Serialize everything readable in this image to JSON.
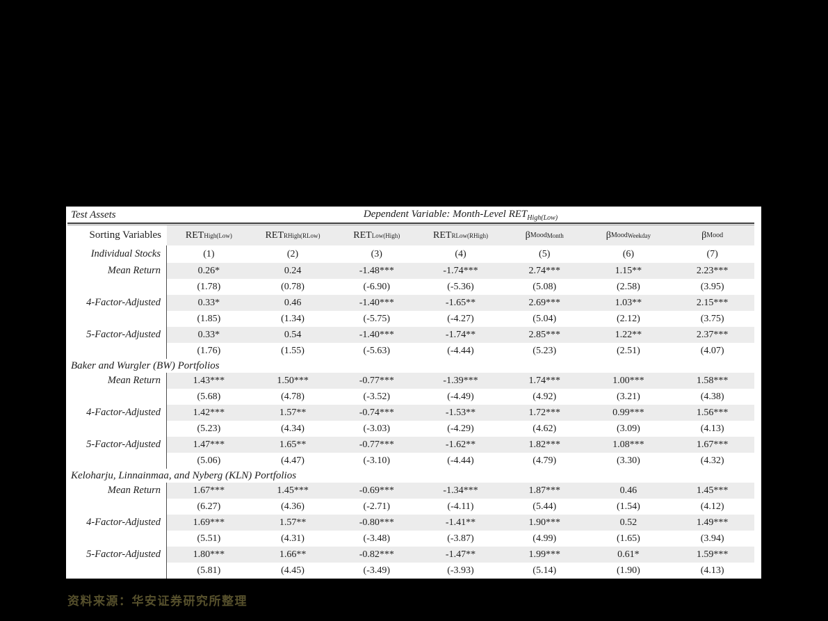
{
  "colors": {
    "page_background": "#000000",
    "panel_background": "#ffffff",
    "stripe": "#ececec",
    "footer_text": "#56502c"
  },
  "table": {
    "top_left_label": "Test Assets",
    "dependent_variable": {
      "prefix": "Dependent Variable: Month-Level ",
      "base": "RET",
      "sub": "High(Low)"
    },
    "row_label_header": "Sorting Variables",
    "columns": [
      {
        "base": "RET",
        "sup": "",
        "sub": "High(Low)"
      },
      {
        "base": "RET",
        "sup": "",
        "sub": "RHigh(RLow)"
      },
      {
        "base": "RET",
        "sup": "",
        "sub": "Low(High)"
      },
      {
        "base": "RET",
        "sup": "",
        "sub": "RLow(RHigh)"
      },
      {
        "base": "β",
        "sup": "Mood",
        "sub": "Month"
      },
      {
        "base": "β",
        "sup": "Mood",
        "sub": "Weekday"
      },
      {
        "base": "β",
        "sup": "Mood",
        "sub": ""
      }
    ],
    "sections": [
      {
        "title": "Individual Stocks",
        "title_in_label_column": true,
        "column_numbers": [
          "(1)",
          "(2)",
          "(3)",
          "(4)",
          "(5)",
          "(6)",
          "(7)"
        ],
        "rows": [
          {
            "label": "Mean Return",
            "values": [
              "0.26*",
              "0.24",
              "-1.48***",
              "-1.74***",
              "2.74***",
              "1.15**",
              "2.23***"
            ],
            "tstats": [
              "(1.78)",
              "(0.78)",
              "(-6.90)",
              "(-5.36)",
              "(5.08)",
              "(2.58)",
              "(3.95)"
            ]
          },
          {
            "label": "4-Factor-Adjusted",
            "values": [
              "0.33*",
              "0.46",
              "-1.40***",
              "-1.65**",
              "2.69***",
              "1.03**",
              "2.15***"
            ],
            "tstats": [
              "(1.85)",
              "(1.34)",
              "(-5.75)",
              "(-4.27)",
              "(5.04)",
              "(2.12)",
              "(3.75)"
            ]
          },
          {
            "label": "5-Factor-Adjusted",
            "values": [
              "0.33*",
              "0.54",
              "-1.40***",
              "-1.74**",
              "2.85***",
              "1.22**",
              "2.37***"
            ],
            "tstats": [
              "(1.76)",
              "(1.55)",
              "(-5.63)",
              "(-4.44)",
              "(5.23)",
              "(2.51)",
              "(4.07)"
            ]
          }
        ]
      },
      {
        "title": "Baker and Wurgler (BW) Portfolios",
        "title_in_label_column": false,
        "column_numbers": [],
        "rows": [
          {
            "label": "Mean Return",
            "values": [
              "1.43***",
              "1.50***",
              "-0.77***",
              "-1.39***",
              "1.74***",
              "1.00***",
              "1.58***"
            ],
            "tstats": [
              "(5.68)",
              "(4.78)",
              "(-3.52)",
              "(-4.49)",
              "(4.92)",
              "(3.21)",
              "(4.38)"
            ]
          },
          {
            "label": "4-Factor-Adjusted",
            "values": [
              "1.42***",
              "1.57**",
              "-0.74***",
              "-1.53**",
              "1.72***",
              "0.99***",
              "1.56***"
            ],
            "tstats": [
              "(5.23)",
              "(4.34)",
              "(-3.03)",
              "(-4.29)",
              "(4.62)",
              "(3.09)",
              "(4.13)"
            ]
          },
          {
            "label": "5-Factor-Adjusted",
            "values": [
              "1.47***",
              "1.65**",
              "-0.77***",
              "-1.62**",
              "1.82***",
              "1.08***",
              "1.67***"
            ],
            "tstats": [
              "(5.06)",
              "(4.47)",
              "(-3.10)",
              "(-4.44)",
              "(4.79)",
              "(3.30)",
              "(4.32)"
            ]
          }
        ]
      },
      {
        "title": "Keloharju, Linnainmaa, and Nyberg (KLN) Portfolios",
        "title_in_label_column": false,
        "column_numbers": [],
        "rows": [
          {
            "label": "Mean Return",
            "values": [
              "1.67***",
              "1.45***",
              "-0.69***",
              "-1.34***",
              "1.87***",
              "0.46",
              "1.45***"
            ],
            "tstats": [
              "(6.27)",
              "(4.36)",
              "(-2.71)",
              "(-4.11)",
              "(5.44)",
              "(1.54)",
              "(4.12)"
            ]
          },
          {
            "label": "4-Factor-Adjusted",
            "values": [
              "1.69***",
              "1.57**",
              "-0.80***",
              "-1.41**",
              "1.90***",
              "0.52",
              "1.49***"
            ],
            "tstats": [
              "(5.51)",
              "(4.31)",
              "(-3.48)",
              "(-3.87)",
              "(4.99)",
              "(1.65)",
              "(3.94)"
            ]
          },
          {
            "label": "5-Factor-Adjusted",
            "values": [
              "1.80***",
              "1.66**",
              "-0.82***",
              "-1.47**",
              "1.99***",
              "0.61*",
              "1.59***"
            ],
            "tstats": [
              "(5.81)",
              "(4.45)",
              "(-3.49)",
              "(-3.93)",
              "(5.14)",
              "(1.90)",
              "(4.13)"
            ]
          }
        ]
      }
    ]
  },
  "footer": {
    "source_note": "资料来源：华安证券研究所整理"
  }
}
